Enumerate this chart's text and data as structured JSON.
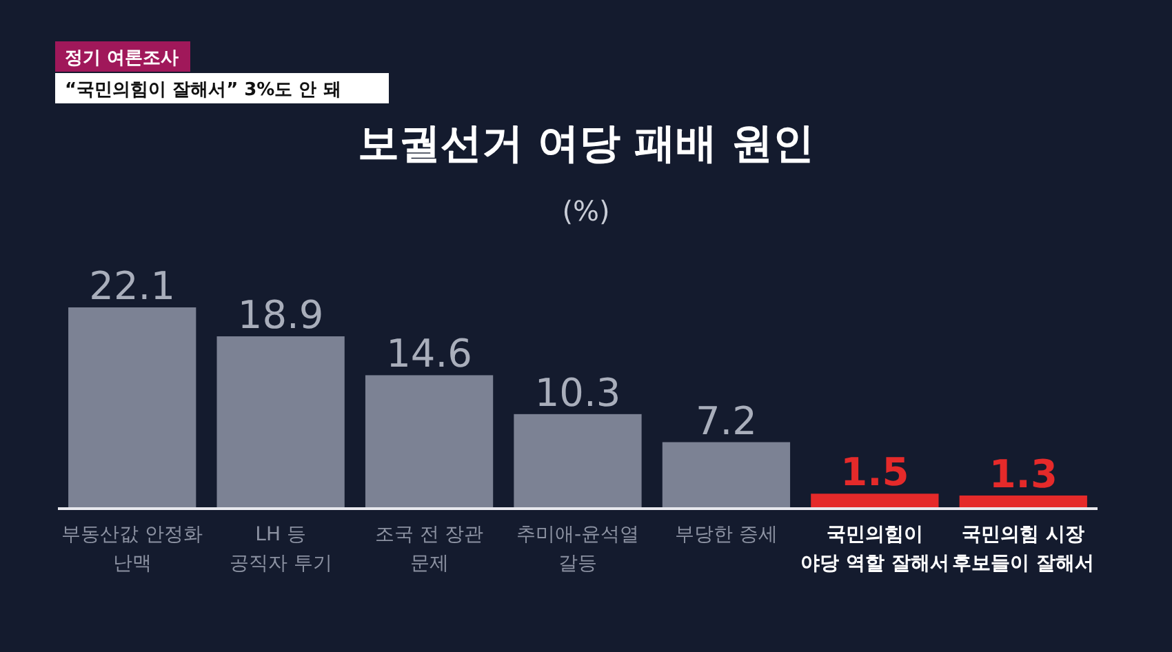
{
  "chart_data": {
    "type": "bar",
    "title": "보궐선거 여당 패배 원인",
    "subtitle": "(%)",
    "annotations": [
      "정기 여론조사",
      "“국민의힘이 잘해서” 3%도 안 돼"
    ],
    "categories": [
      "부동산값 안정화\n난맥",
      "LH 등\n공직자 투기",
      "조국 전 장관\n문제",
      "추미애-윤석열\n갈등",
      "부당한 증세",
      "국민의힘이\n야당 역할 잘해서",
      "국민의힘 시장\n후보들이 잘해서"
    ],
    "values": [
      22.1,
      18.9,
      14.6,
      10.3,
      7.2,
      1.5,
      1.3
    ],
    "colors": [
      "#7c8294",
      "#7c8294",
      "#7c8294",
      "#7c8294",
      "#7c8294",
      "#e52a2a",
      "#e52a2a"
    ],
    "data_labels": true
  }
}
